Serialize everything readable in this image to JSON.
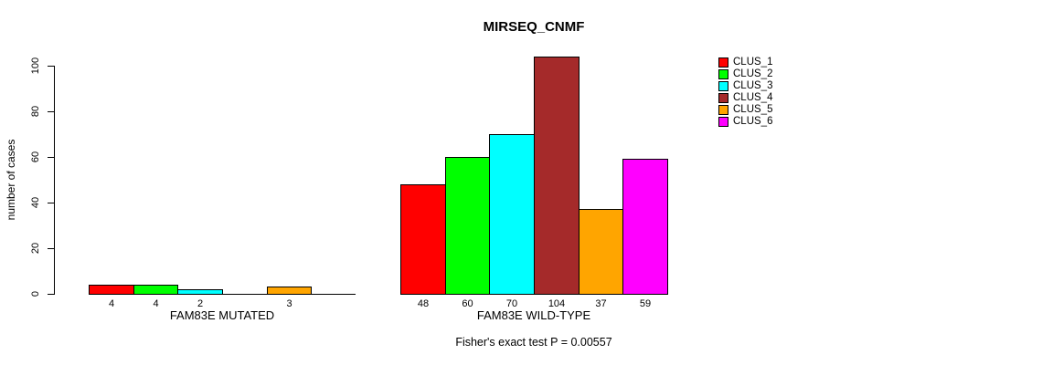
{
  "chart_data": {
    "type": "bar",
    "title": "MIRSEQ_CNMF",
    "ylabel": "number of cases",
    "ylim": [
      0,
      100
    ],
    "yticks": [
      0,
      20,
      40,
      60,
      80,
      100
    ],
    "series": [
      "CLUS_1",
      "CLUS_2",
      "CLUS_3",
      "CLUS_4",
      "CLUS_5",
      "CLUS_6"
    ],
    "colors": [
      "#FF0000",
      "#00FF00",
      "#00FFFF",
      "#A52A2A",
      "#FFA500",
      "#FF00FF"
    ],
    "groups": [
      {
        "label": "FAM83E MUTATED",
        "values": [
          4,
          4,
          2,
          0,
          3,
          0
        ],
        "bar_labels": [
          "4",
          "4",
          "2",
          "",
          "3",
          ""
        ]
      },
      {
        "label": "FAM83E WILD-TYPE",
        "values": [
          48,
          60,
          70,
          104,
          37,
          59
        ],
        "bar_labels": [
          "48",
          "60",
          "70",
          "104",
          "37",
          "59"
        ]
      }
    ],
    "annotation": "Fisher's exact test P = 0.00557",
    "legend_position": "right",
    "grid": false,
    "axis_color": "#000000",
    "background": "#FFFFFF"
  }
}
